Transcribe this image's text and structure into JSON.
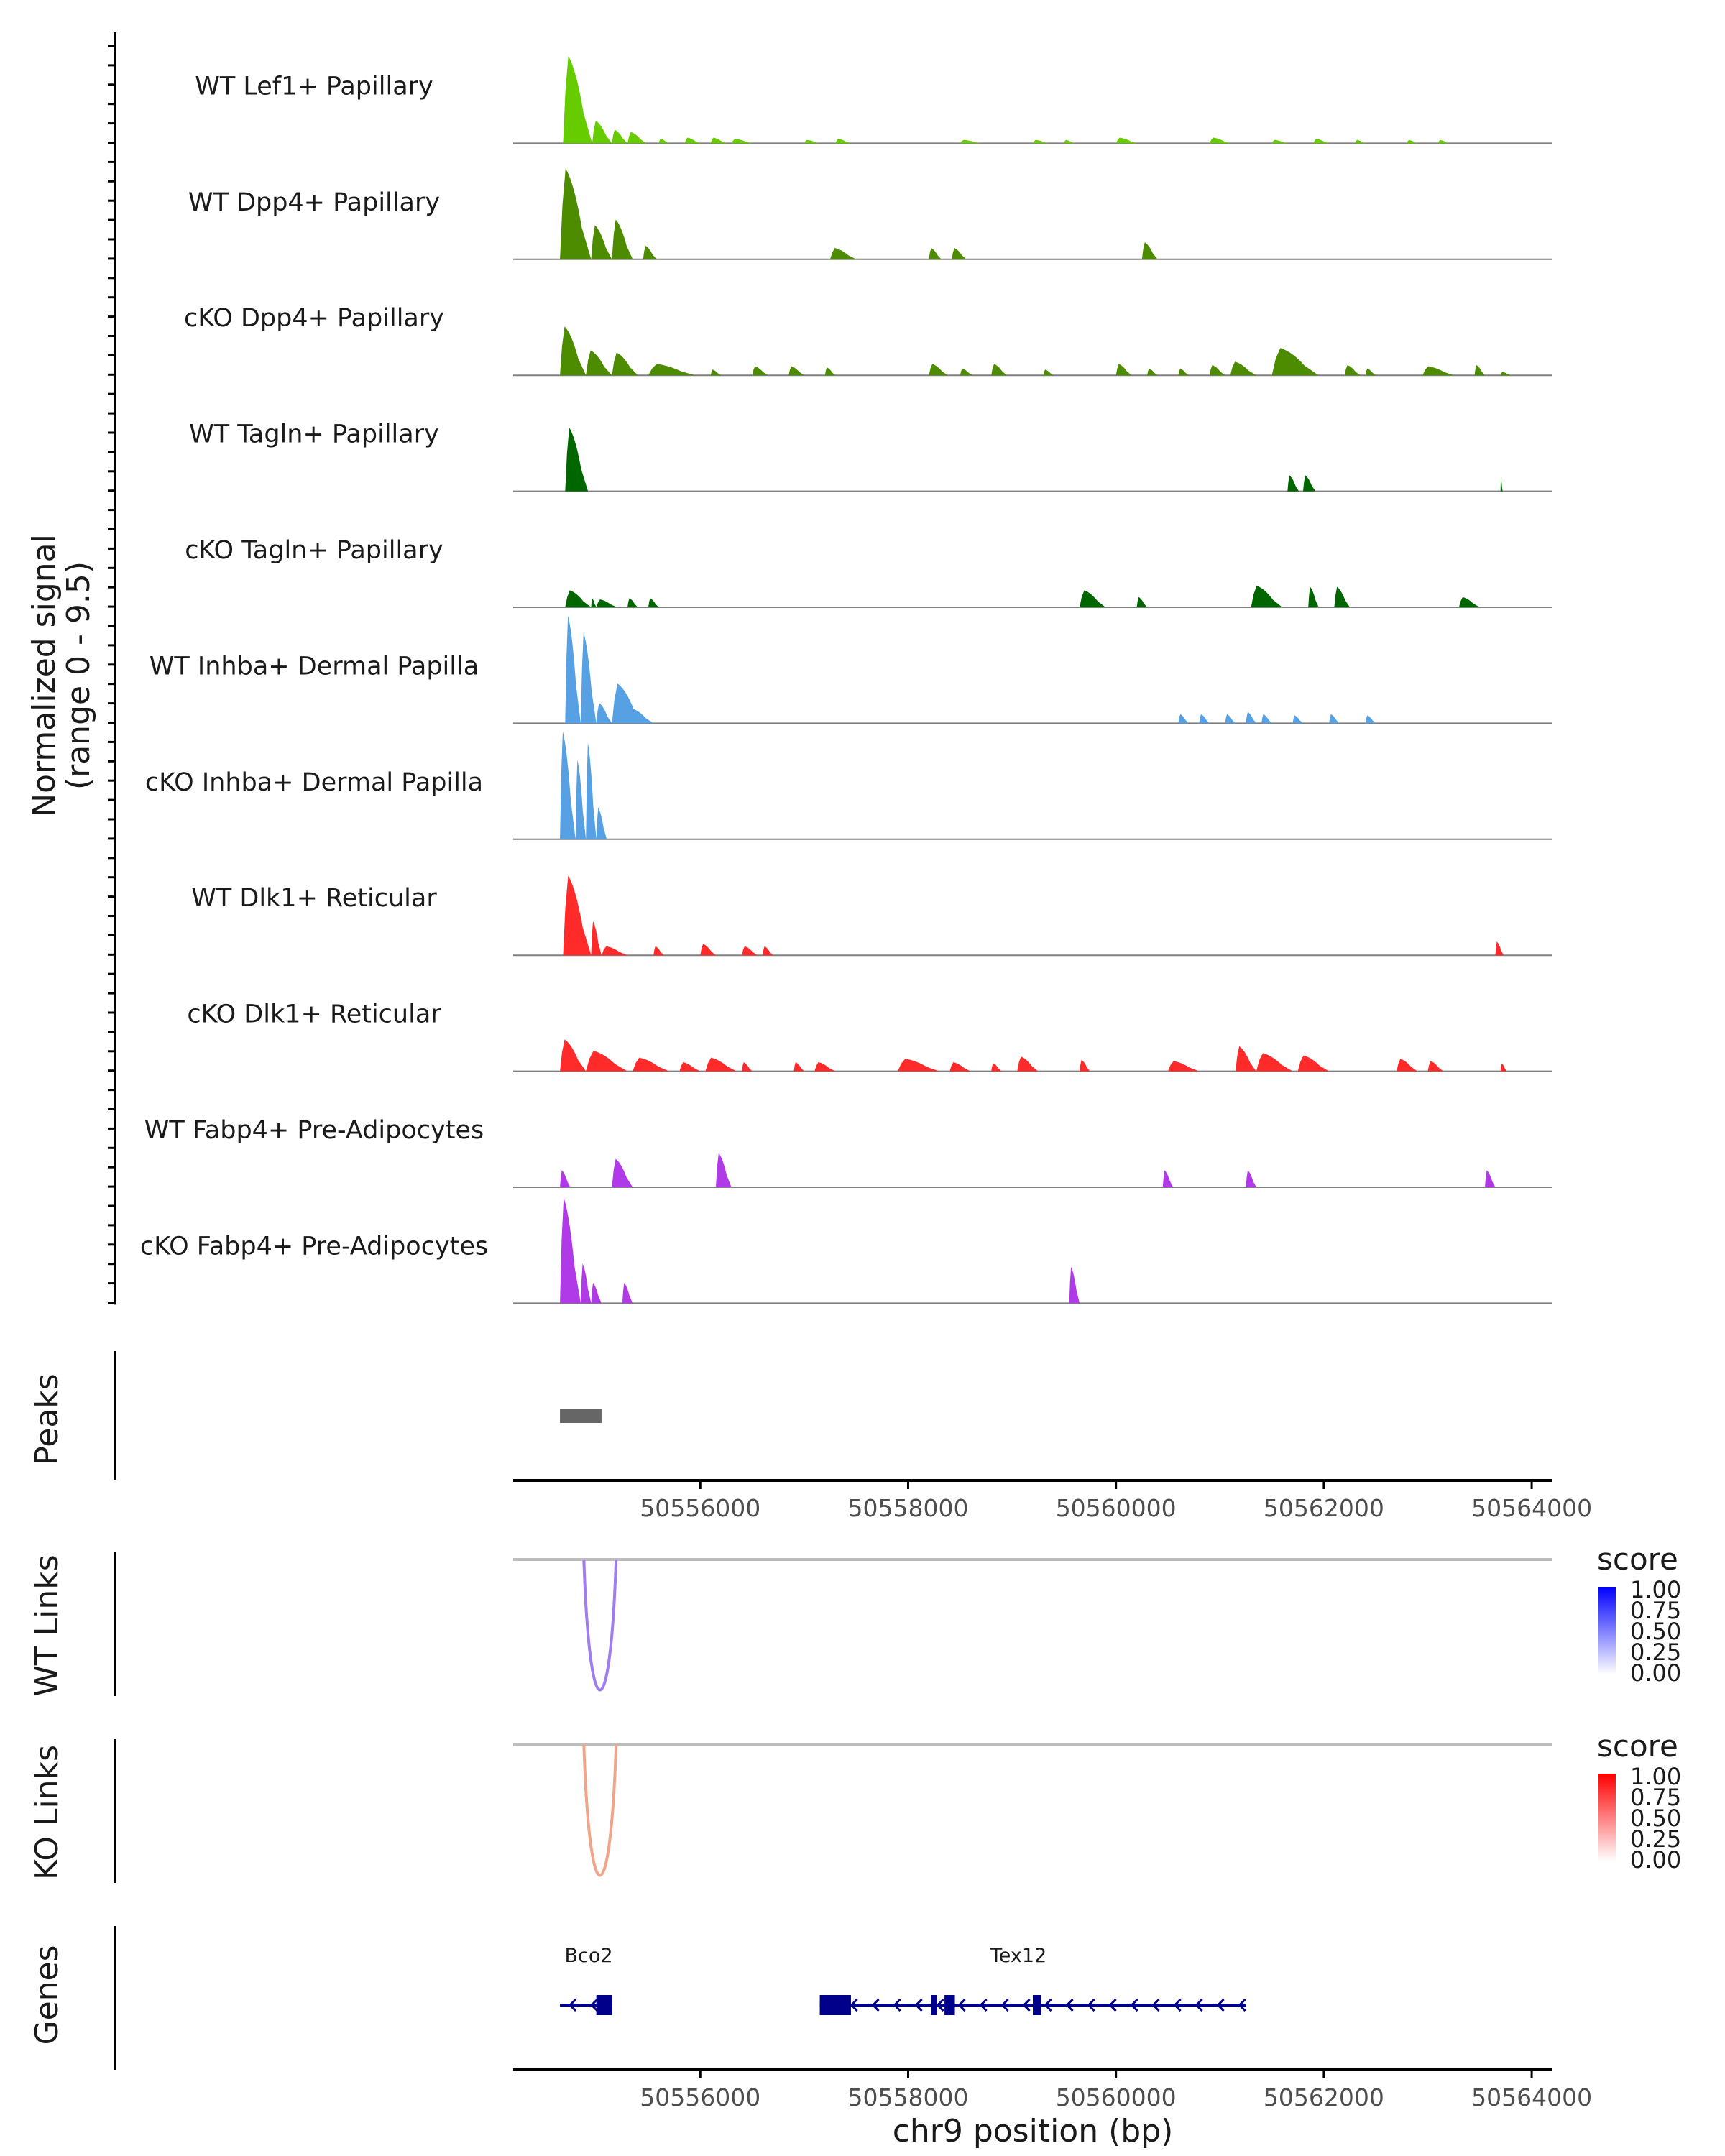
{
  "chart_data": {
    "type": "area",
    "region": "chr9",
    "xlim": [
      50554200,
      50564200
    ],
    "x_ticks": [
      50556000,
      50558000,
      50560000,
      50562000,
      50564000
    ],
    "x_tick_labels": [
      "50556000",
      "50558000",
      "50560000",
      "50562000",
      "50564000"
    ],
    "xlabel": "chr9 position (bp)",
    "ylabel": "Normalized signal",
    "ylabel_range": "(range 0 - 9.5)",
    "ylim": [
      0,
      9.5
    ],
    "tracks": [
      {
        "name": "WT Lef1+ Papillary",
        "color": "#66cc00",
        "peaks": [
          [
            50554680,
            50554960,
            7.7
          ],
          [
            50554960,
            50555150,
            2.0
          ],
          [
            50555150,
            50555300,
            1.2
          ],
          [
            50555300,
            50555480,
            1.0
          ],
          [
            50555600,
            50555700,
            0.4
          ],
          [
            50555850,
            50556000,
            0.5
          ],
          [
            50556100,
            50556250,
            0.5
          ],
          [
            50556300,
            50556500,
            0.4
          ],
          [
            50557000,
            50557150,
            0.3
          ],
          [
            50557300,
            50557450,
            0.4
          ],
          [
            50558500,
            50558700,
            0.3
          ],
          [
            50559200,
            50559350,
            0.3
          ],
          [
            50559500,
            50559600,
            0.3
          ],
          [
            50560000,
            50560200,
            0.5
          ],
          [
            50560900,
            50561100,
            0.5
          ],
          [
            50561500,
            50561650,
            0.3
          ],
          [
            50561900,
            50562050,
            0.4
          ],
          [
            50562300,
            50562400,
            0.3
          ],
          [
            50562800,
            50562900,
            0.3
          ],
          [
            50563100,
            50563200,
            0.3
          ]
        ]
      },
      {
        "name": "WT Dpp4+ Papillary",
        "color": "#4d8c00",
        "peaks": [
          [
            50554650,
            50554950,
            8.0
          ],
          [
            50554950,
            50555150,
            3.0
          ],
          [
            50555150,
            50555350,
            3.5
          ],
          [
            50555450,
            50555580,
            1.2
          ],
          [
            50557250,
            50557500,
            1.0
          ],
          [
            50558200,
            50558320,
            1.0
          ],
          [
            50558420,
            50558560,
            1.0
          ],
          [
            50560250,
            50560400,
            1.5
          ]
        ]
      },
      {
        "name": "cKO Dpp4+ Papillary",
        "color": "#4d8c00",
        "peaks": [
          [
            50554650,
            50554900,
            4.3
          ],
          [
            50554900,
            50555150,
            2.2
          ],
          [
            50555150,
            50555400,
            2.0
          ],
          [
            50555500,
            50555950,
            1.0
          ],
          [
            50556100,
            50556200,
            0.5
          ],
          [
            50556500,
            50556650,
            0.8
          ],
          [
            50556850,
            50557000,
            0.8
          ],
          [
            50557200,
            50557300,
            0.7
          ],
          [
            50558200,
            50558380,
            1.0
          ],
          [
            50558500,
            50558620,
            0.6
          ],
          [
            50558800,
            50558950,
            1.0
          ],
          [
            50559300,
            50559400,
            0.5
          ],
          [
            50560000,
            50560150,
            1.0
          ],
          [
            50560300,
            50560400,
            0.6
          ],
          [
            50560600,
            50560700,
            0.6
          ],
          [
            50560900,
            50561050,
            0.9
          ],
          [
            50561100,
            50561350,
            1.2
          ],
          [
            50561500,
            50561950,
            2.4
          ],
          [
            50562200,
            50562350,
            0.9
          ],
          [
            50562400,
            50562500,
            0.6
          ],
          [
            50562950,
            50563250,
            0.8
          ],
          [
            50563450,
            50563550,
            0.9
          ],
          [
            50563700,
            50563800,
            0.3
          ]
        ]
      },
      {
        "name": "WT Tagln+ Papillary",
        "color": "#006600",
        "peaks": [
          [
            50554700,
            50554920,
            5.6
          ],
          [
            50561650,
            50561760,
            1.4
          ],
          [
            50561800,
            50561920,
            1.4
          ],
          [
            50563700,
            50563720,
            1.2
          ]
        ]
      },
      {
        "name": "cKO Tagln+ Papillary",
        "color": "#006600",
        "peaks": [
          [
            50554700,
            50554950,
            1.5
          ],
          [
            50554950,
            50555000,
            0.8
          ],
          [
            50555000,
            50555200,
            0.7
          ],
          [
            50555300,
            50555400,
            0.8
          ],
          [
            50555500,
            50555600,
            0.8
          ],
          [
            50559650,
            50559900,
            1.5
          ],
          [
            50560200,
            50560300,
            0.9
          ],
          [
            50561300,
            50561600,
            1.9
          ],
          [
            50561850,
            50561950,
            1.8
          ],
          [
            50562100,
            50562250,
            1.8
          ],
          [
            50563300,
            50563500,
            0.9
          ]
        ]
      },
      {
        "name": "WT Inhba+ Dermal Papilla",
        "color": "#56a0e3",
        "peaks": [
          [
            50554700,
            50554850,
            9.5
          ],
          [
            50554850,
            50555000,
            8.0
          ],
          [
            50555000,
            50555150,
            1.8
          ],
          [
            50555150,
            50555450,
            3.5
          ],
          [
            50555300,
            50555550,
            1.3
          ],
          [
            50560600,
            50560700,
            0.8
          ],
          [
            50560800,
            50560900,
            0.8
          ],
          [
            50561050,
            50561150,
            0.8
          ],
          [
            50561250,
            50561350,
            1.0
          ],
          [
            50561400,
            50561500,
            0.8
          ],
          [
            50561700,
            50561800,
            0.7
          ],
          [
            50562050,
            50562150,
            0.8
          ],
          [
            50562400,
            50562500,
            0.7
          ]
        ]
      },
      {
        "name": "cKO Inhba+ Dermal Papilla",
        "color": "#56a0e3",
        "peaks": [
          [
            50554650,
            50554800,
            9.5
          ],
          [
            50554800,
            50554900,
            7.0
          ],
          [
            50554900,
            50555000,
            8.5
          ],
          [
            50555000,
            50555100,
            2.8
          ]
        ]
      },
      {
        "name": "WT Dlk1+ Reticular",
        "color": "#ff2a2a",
        "peaks": [
          [
            50554680,
            50554950,
            7.0
          ],
          [
            50554950,
            50555050,
            3.0
          ],
          [
            50555050,
            50555300,
            0.8
          ],
          [
            50555550,
            50555650,
            0.8
          ],
          [
            50556000,
            50556150,
            1.0
          ],
          [
            50556400,
            50556550,
            0.8
          ],
          [
            50556600,
            50556700,
            0.8
          ],
          [
            50563650,
            50563730,
            1.2
          ]
        ]
      },
      {
        "name": "cKO Dlk1+ Reticular",
        "color": "#ff2a2a",
        "peaks": [
          [
            50554650,
            50554900,
            2.8
          ],
          [
            50554900,
            50555300,
            1.8
          ],
          [
            50555350,
            50555700,
            1.2
          ],
          [
            50555800,
            50556000,
            0.8
          ],
          [
            50556050,
            50556350,
            1.2
          ],
          [
            50556400,
            50556500,
            0.8
          ],
          [
            50556900,
            50557000,
            0.8
          ],
          [
            50557100,
            50557300,
            0.8
          ],
          [
            50557900,
            50558300,
            1.1
          ],
          [
            50558400,
            50558600,
            0.8
          ],
          [
            50558800,
            50558900,
            0.7
          ],
          [
            50559050,
            50559250,
            1.3
          ],
          [
            50559650,
            50559750,
            1.0
          ],
          [
            50560500,
            50560800,
            0.9
          ],
          [
            50561150,
            50561350,
            2.2
          ],
          [
            50561350,
            50561700,
            1.6
          ],
          [
            50561750,
            50562050,
            1.4
          ],
          [
            50562700,
            50562900,
            1.1
          ],
          [
            50563000,
            50563150,
            0.9
          ],
          [
            50563700,
            50563760,
            0.7
          ]
        ]
      },
      {
        "name": "WT Fabp4+ Pre-Adipocytes",
        "color": "#b03ae8",
        "peaks": [
          [
            50554650,
            50554750,
            1.5
          ],
          [
            50555150,
            50555350,
            2.5
          ],
          [
            50556150,
            50556300,
            3.0
          ],
          [
            50560450,
            50560550,
            1.5
          ],
          [
            50561250,
            50561350,
            1.5
          ],
          [
            50563550,
            50563650,
            1.5
          ]
        ]
      },
      {
        "name": "cKO Fabp4+ Pre-Adipocytes",
        "color": "#b03ae8",
        "peaks": [
          [
            50554650,
            50554850,
            9.3
          ],
          [
            50554850,
            50554950,
            3.5
          ],
          [
            50554950,
            50555050,
            1.8
          ],
          [
            50555250,
            50555350,
            1.8
          ],
          [
            50559550,
            50559650,
            3.2
          ]
        ]
      }
    ],
    "peaks_track": {
      "label": "Peaks",
      "color": "#666666",
      "ranges": [
        [
          50554650,
          50555050
        ]
      ]
    },
    "wt_links": {
      "label": "WT Links",
      "color": "#9f7df0",
      "start": 50554880,
      "end": 50555190,
      "score": 0.45,
      "legend": {
        "title": "score",
        "ticks": [
          "1.00",
          "0.75",
          "0.50",
          "0.25",
          "0.00"
        ],
        "low": "#ffffff",
        "high": "#0000ff"
      }
    },
    "ko_links": {
      "label": "KO Links",
      "color": "#f0a58a",
      "start": 50554880,
      "end": 50555190,
      "score": 0.4,
      "legend": {
        "title": "score",
        "ticks": [
          "1.00",
          "0.75",
          "0.50",
          "0.25",
          "0.00"
        ],
        "low": "#ffffff",
        "high": "#ff0000"
      }
    },
    "genes_track": {
      "label": "Genes",
      "color": "#00008b",
      "genes": [
        {
          "name": "Bco2",
          "start": 50554650,
          "end": 50555150,
          "strand": "-",
          "exons": [
            [
              50555000,
              50555150
            ]
          ]
        },
        {
          "name": "Tex12",
          "start": 50557150,
          "end": 50561250,
          "strand": "-",
          "exons": [
            [
              50557150,
              50557450
            ],
            [
              50558220,
              50558280
            ],
            [
              50558350,
              50558450
            ],
            [
              50559200,
              50559280
            ]
          ]
        }
      ]
    }
  }
}
